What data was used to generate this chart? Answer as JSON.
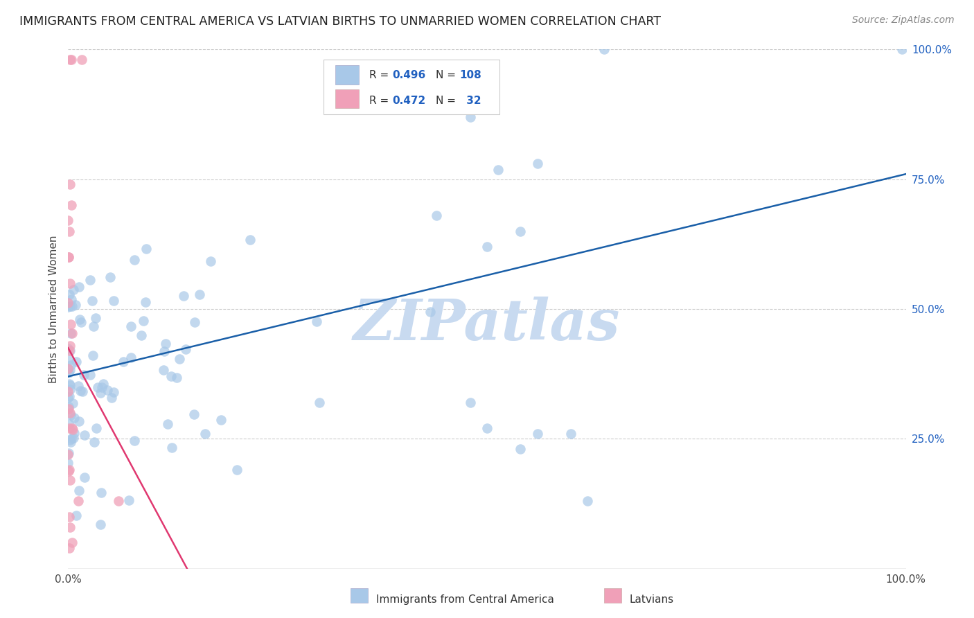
{
  "title": "IMMIGRANTS FROM CENTRAL AMERICA VS LATVIAN BIRTHS TO UNMARRIED WOMEN CORRELATION CHART",
  "source": "Source: ZipAtlas.com",
  "ylabel": "Births to Unmarried Women",
  "watermark": "ZIPatlas",
  "blue_color": "#a8c8e8",
  "pink_color": "#f0a0b8",
  "blue_line_color": "#1a5fa8",
  "pink_line_color": "#e03870",
  "background_color": "#ffffff",
  "grid_color": "#cccccc",
  "title_color": "#222222",
  "right_ytick_labels": [
    "100.0%",
    "75.0%",
    "50.0%",
    "25.0%"
  ],
  "right_ytick_values": [
    1.0,
    0.75,
    0.5,
    0.25
  ],
  "legend_text_color": "#2060c0",
  "watermark_color": "#c8daf0",
  "bottom_legend": [
    {
      "label": "Immigrants from Central America",
      "color": "#a8c8e8"
    },
    {
      "label": "Latvians",
      "color": "#f0a0b8"
    }
  ]
}
